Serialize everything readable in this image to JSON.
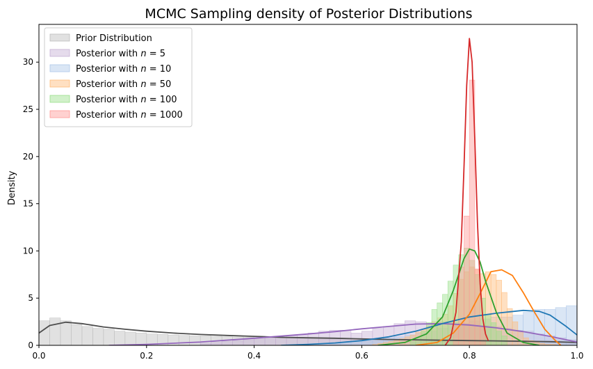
{
  "chart_data": {
    "type": "area",
    "title": "MCMC Sampling density of Posterior Distributions",
    "xlabel": "",
    "ylabel": "Density",
    "xlim": [
      0.0,
      1.0
    ],
    "ylim": [
      0,
      34
    ],
    "x_ticks": [
      "0.0",
      "0.2",
      "0.4",
      "0.6",
      "0.8",
      "1.0"
    ],
    "y_ticks": [
      "0",
      "5",
      "10",
      "15",
      "20",
      "25",
      "30"
    ],
    "grid": false,
    "legend_position": "top-left",
    "series": [
      {
        "name": "Prior Distribution",
        "color": "#4d4d4d",
        "fill": "#bdbdbd",
        "hist": {
          "start": 0.0,
          "width": 0.02,
          "values": [
            2.6,
            2.9,
            2.6,
            2.2,
            2.0,
            1.8,
            1.7,
            1.5,
            1.4,
            1.3,
            1.2,
            1.15,
            1.1,
            1.05,
            1.0,
            1.0,
            0.95,
            0.9,
            0.88,
            0.85,
            0.82,
            0.8,
            0.78,
            0.76,
            0.74,
            0.72,
            0.7,
            0.68,
            0.66,
            0.64,
            0.62,
            0.6,
            0.58,
            0.56,
            0.55,
            0.54,
            0.53,
            0.52,
            0.51,
            0.5,
            0.5,
            0.5,
            0.5,
            0.5,
            0.5,
            0.5,
            0.5,
            0.5,
            0.5,
            0.5
          ]
        },
        "kde": {
          "x": [
            0.0,
            0.02,
            0.05,
            0.08,
            0.12,
            0.16,
            0.2,
            0.25,
            0.3,
            0.35,
            0.4,
            0.45,
            0.5,
            0.55,
            0.6,
            0.65,
            0.7,
            0.75,
            0.8,
            0.85,
            0.9,
            0.95,
            1.0
          ],
          "y": [
            1.3,
            2.1,
            2.45,
            2.3,
            1.95,
            1.7,
            1.5,
            1.3,
            1.15,
            1.05,
            0.95,
            0.85,
            0.8,
            0.75,
            0.68,
            0.62,
            0.58,
            0.54,
            0.5,
            0.47,
            0.43,
            0.38,
            0.3
          ]
        }
      },
      {
        "name": "Posterior with $n = 5$",
        "color": "#9467bd",
        "fill": "#c5b0d5",
        "hist": {
          "start": 0.3,
          "width": 0.02,
          "values": [
            0.2,
            0.3,
            0.4,
            0.5,
            0.6,
            0.7,
            0.8,
            0.9,
            1.0,
            1.1,
            1.3,
            1.5,
            1.6,
            1.6,
            1.3,
            1.5,
            1.8,
            2.0,
            2.3,
            2.6,
            2.5,
            2.3,
            2.5,
            2.4,
            2.3,
            2.2,
            2.1,
            2.0,
            1.8,
            1.6,
            1.5,
            1.2,
            1.0,
            0.8,
            0.6
          ]
        },
        "kde": {
          "x": [
            0.13,
            0.2,
            0.3,
            0.4,
            0.5,
            0.55,
            0.6,
            0.65,
            0.7,
            0.75,
            0.8,
            0.85,
            0.9,
            0.95,
            1.0
          ],
          "y": [
            0.0,
            0.1,
            0.35,
            0.75,
            1.2,
            1.45,
            1.75,
            2.0,
            2.25,
            2.3,
            2.15,
            1.85,
            1.45,
            0.95,
            0.35
          ]
        }
      },
      {
        "name": "Posterior with $n = 10$",
        "color": "#1f77b4",
        "fill": "#aec7e8",
        "hist": {
          "start": 0.48,
          "width": 0.02,
          "values": [
            0.1,
            0.1,
            0.2,
            0.2,
            0.3,
            0.4,
            0.5,
            0.6,
            0.8,
            0.9,
            1.1,
            1.3,
            1.5,
            1.8,
            2.0,
            2.3,
            2.6,
            2.8,
            3.0,
            3.0,
            3.2,
            3.5,
            3.8,
            3.8,
            4.0,
            4.2,
            4.0
          ]
        },
        "kde": {
          "x": [
            0.45,
            0.5,
            0.55,
            0.6,
            0.65,
            0.7,
            0.75,
            0.8,
            0.85,
            0.9,
            0.93,
            0.95,
            0.98,
            1.0
          ],
          "y": [
            0.0,
            0.1,
            0.25,
            0.5,
            0.9,
            1.5,
            2.3,
            3.0,
            3.4,
            3.7,
            3.6,
            3.2,
            2.0,
            1.1
          ]
        }
      },
      {
        "name": "Posterior with $n = 50$",
        "color": "#ff7f0e",
        "fill": "#ffbb78",
        "hist": {
          "start": 0.62,
          "width": 0.01,
          "values": [
            0.1,
            0.2,
            0.3,
            0.4,
            0.5,
            0.7,
            0.9,
            1.1,
            1.4,
            1.7,
            2.0,
            2.5,
            2.9,
            3.3,
            4.2,
            5.5,
            7.0,
            7.8,
            8.3,
            8.0,
            7.6,
            7.8,
            7.5,
            6.9,
            5.6,
            3.9,
            2.5,
            1.5,
            0.8,
            0.5,
            0.3,
            0.2,
            0.1,
            0.1
          ]
        },
        "kde": {
          "x": [
            0.7,
            0.74,
            0.77,
            0.8,
            0.82,
            0.84,
            0.86,
            0.88,
            0.9,
            0.92,
            0.94,
            0.96,
            0.97
          ],
          "y": [
            0.0,
            0.3,
            1.3,
            3.3,
            5.5,
            7.8,
            8.0,
            7.4,
            5.6,
            3.6,
            1.7,
            0.5,
            0.0
          ]
        }
      },
      {
        "name": "Posterior with $n = 100$",
        "color": "#2ca02c",
        "fill": "#98df8a",
        "hist": {
          "start": 0.69,
          "width": 0.01,
          "values": [
            0.4,
            0.8,
            1.5,
            2.4,
            3.8,
            4.5,
            5.4,
            6.8,
            8.5,
            9.6,
            10.3,
            9.0,
            7.5,
            5.0,
            3.3,
            2.4,
            1.5,
            1.0
          ]
        },
        "kde": {
          "x": [
            0.63,
            0.68,
            0.72,
            0.75,
            0.77,
            0.79,
            0.8,
            0.81,
            0.82,
            0.83,
            0.85,
            0.87,
            0.9,
            0.93
          ],
          "y": [
            0.0,
            0.3,
            1.2,
            3.0,
            5.8,
            9.2,
            10.2,
            10.0,
            8.8,
            6.8,
            3.5,
            1.3,
            0.3,
            0.0
          ]
        }
      },
      {
        "name": "Posterior with $n = 1000$",
        "color": "#d62728",
        "fill": "#ff9896",
        "hist": {
          "start": 0.77,
          "width": 0.01,
          "values": [
            2.1,
            8.3,
            13.7,
            28.1,
            8.1,
            2.0
          ]
        },
        "kde": {
          "x": [
            0.755,
            0.765,
            0.775,
            0.785,
            0.79,
            0.795,
            0.8,
            0.805,
            0.81,
            0.815,
            0.82,
            0.825,
            0.83,
            0.835
          ],
          "y": [
            0.0,
            0.8,
            3.5,
            11.0,
            19.0,
            27.5,
            32.5,
            30.0,
            22.0,
            13.0,
            6.5,
            2.8,
            1.2,
            0.5
          ]
        }
      }
    ]
  }
}
